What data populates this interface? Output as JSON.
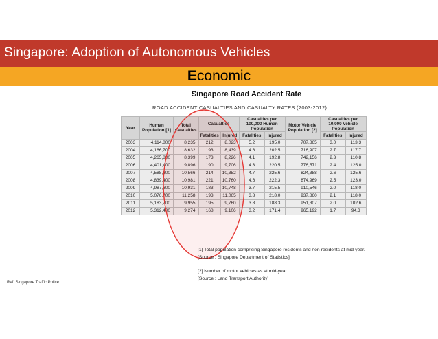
{
  "slide": {
    "title": "Singapore: Adoption of Autonomous Vehicles",
    "subtitle_first": "E",
    "subtitle_rest": "conomic",
    "chart_title": "Singapore Road Accident Rate",
    "reference": "Ref: Singapore Traffic Police"
  },
  "table": {
    "title": "ROAD ACCIDENT CASUALTIES AND CASUALTY RATES (2003-2012)",
    "headers": {
      "year": "Year",
      "human_population": "Human Population [1]",
      "total_casualties": "Total Casualties",
      "casualties": "Casualties",
      "fatalities": "Fatalities",
      "injured": "Injured",
      "per_100000": "Casualties per 100,000 Human Population",
      "motor_vehicle_population": "Motor Vehicle Population [2]",
      "per_10000": "Casualties per 10,000 Vehicle Population"
    },
    "rows": [
      [
        "2003",
        "4,114,800",
        "8,235",
        "212",
        "8,023",
        "5.2",
        "195.0",
        "707,865",
        "3.0",
        "113.3"
      ],
      [
        "2004",
        "4,166,700",
        "8,632",
        "193",
        "8,439",
        "4.6",
        "202.5",
        "716,907",
        "2.7",
        "117.7"
      ],
      [
        "2005",
        "4,265,800",
        "8,399",
        "173",
        "8,226",
        "4.1",
        "192.8",
        "742,156",
        "2.3",
        "110.8"
      ],
      [
        "2006",
        "4,401,400",
        "9,896",
        "190",
        "9,706",
        "4.3",
        "220.5",
        "776,571",
        "2.4",
        "125.0"
      ],
      [
        "2007",
        "4,588,600",
        "10,566",
        "214",
        "10,352",
        "4.7",
        "225.6",
        "824,388",
        "2.6",
        "125.6"
      ],
      [
        "2008",
        "4,839,400",
        "10,981",
        "221",
        "10,760",
        "4.6",
        "222.3",
        "874,969",
        "2.5",
        "123.0"
      ],
      [
        "2009",
        "4,987,600",
        "10,931",
        "183",
        "10,748",
        "3.7",
        "215.5",
        "910,546",
        "2.0",
        "118.0"
      ],
      [
        "2010",
        "5,076,700",
        "11,258",
        "193",
        "11,065",
        "3.8",
        "218.0",
        "937,860",
        "2.1",
        "118.0"
      ],
      [
        "2011",
        "5,183,700",
        "9,955",
        "195",
        "9,760",
        "3.8",
        "188.3",
        "951,307",
        "2.0",
        "102.6"
      ],
      [
        "2012",
        "5,312,400",
        "9,274",
        "168",
        "9,106",
        "3.2",
        "171.4",
        "965,192",
        "1.7",
        "94.3"
      ]
    ]
  },
  "notes": [
    "[1] Total population comprising Singapore residents and non-residents at mid-year.",
    "[Source : Singapore Department of Statistics]",
    "[2] Number of motor vehicles as at mid-year.",
    "[Source : Land Transport Authority]"
  ],
  "colors": {
    "title_bar": "#c0392b",
    "subtitle_bar": "#f5a623",
    "highlight_ellipse": "#e53935"
  }
}
